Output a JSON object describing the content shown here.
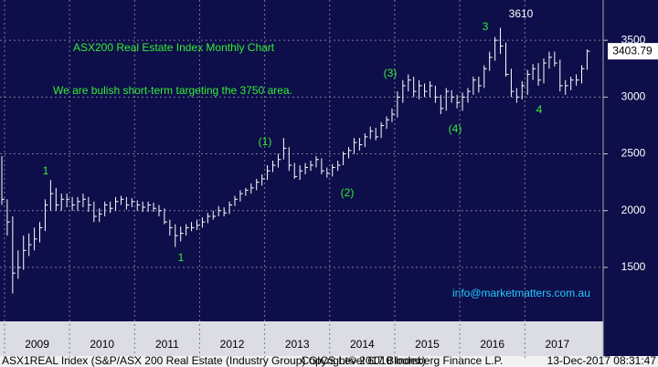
{
  "chart_data": {
    "type": "ohlc",
    "title": "ASX200 Real Estate Index Monthly Chart",
    "subtitle": "We are bulish short-term targeting the 3750 area.",
    "wave_labels": [
      "1",
      "1",
      "(1)",
      "(2)",
      "(3)",
      "(4)",
      "3",
      "4"
    ],
    "watermark": "info@marketmatters.com.au",
    "footer": [
      "ASX1REAL Index (S&P/ASX 200 Real Estate (Industry Group) GICS Level 6010 Index)",
      "Copyright© 2017 Bloomberg Finance L.P.",
      "13-Dec-2017 08:31:47"
    ],
    "categories": [
      "2009",
      "2010",
      "2011",
      "2012",
      "2013",
      "2014",
      "2015",
      "2016",
      "2017"
    ],
    "ylim": [
      1025,
      3855
    ],
    "yticks": [
      1500,
      2000,
      2500,
      3000,
      3500
    ],
    "grid": true,
    "color": "#ffffff",
    "high": [
      2480,
      2100,
      1950,
      1650,
      1780,
      1800,
      1850,
      1900,
      2100,
      2270,
      2200,
      2150,
      2150,
      2120,
      2120,
      2150,
      2120,
      2080,
      2020,
      2080,
      2080,
      2120,
      2130,
      2120,
      2110,
      2090,
      2080,
      2080,
      2070,
      2050,
      2020,
      1920,
      1880,
      1860,
      1880,
      1900,
      1920,
      1940,
      1980,
      2000,
      2040,
      2030,
      2080,
      2130,
      2180,
      2200,
      2240,
      2280,
      2320,
      2400,
      2440,
      2500,
      2640,
      2560,
      2420,
      2400,
      2420,
      2440,
      2480,
      2460,
      2380,
      2410,
      2440,
      2520,
      2560,
      2640,
      2640,
      2680,
      2740,
      2730,
      2780,
      2830,
      2900,
      3050,
      3150,
      3200,
      3180,
      3150,
      3120,
      3140,
      3100,
      3020,
      3080,
      3060,
      3020,
      3040,
      3080,
      3180,
      3180,
      3280,
      3400,
      3530,
      3610,
      3480,
      3250,
      3080,
      3140,
      3240,
      3290,
      3300,
      3340,
      3400,
      3400,
      3330,
      3150,
      3180,
      3200,
      3280,
      3420
    ],
    "low": [
      2050,
      1780,
      1270,
      1400,
      1480,
      1600,
      1650,
      1720,
      1820,
      2000,
      2000,
      2000,
      2030,
      2000,
      2000,
      2030,
      1990,
      1900,
      1900,
      1950,
      1980,
      2000,
      2050,
      2010,
      2030,
      2000,
      1990,
      1990,
      1990,
      1950,
      1880,
      1780,
      1680,
      1730,
      1780,
      1820,
      1830,
      1850,
      1890,
      1920,
      1950,
      1950,
      1970,
      2040,
      2080,
      2130,
      2150,
      2180,
      2220,
      2270,
      2340,
      2380,
      2450,
      2350,
      2280,
      2270,
      2320,
      2350,
      2380,
      2320,
      2290,
      2300,
      2350,
      2400,
      2460,
      2500,
      2530,
      2560,
      2630,
      2620,
      2640,
      2720,
      2780,
      2820,
      2950,
      3050,
      3000,
      2980,
      3000,
      3000,
      2950,
      2850,
      2880,
      2950,
      2900,
      2880,
      2950,
      3020,
      3040,
      3080,
      3230,
      3320,
      3380,
      3180,
      3000,
      2950,
      2980,
      3020,
      3150,
      3100,
      3120,
      3250,
      3270,
      3050,
      3020,
      3060,
      3100,
      3120,
      3240
    ],
    "close": [
      2100,
      1900,
      1450,
      1500,
      1650,
      1700,
      1750,
      1850,
      2050,
      2150,
      2050,
      2100,
      2100,
      2050,
      2080,
      2100,
      2050,
      1950,
      1970,
      2050,
      2020,
      2080,
      2100,
      2050,
      2080,
      2050,
      2030,
      2050,
      2020,
      2000,
      1900,
      1850,
      1780,
      1800,
      1850,
      1850,
      1870,
      1900,
      1950,
      1950,
      2000,
      1980,
      2050,
      2100,
      2150,
      2180,
      2200,
      2250,
      2280,
      2350,
      2400,
      2450,
      2550,
      2400,
      2300,
      2350,
      2380,
      2400,
      2450,
      2350,
      2330,
      2380,
      2400,
      2500,
      2530,
      2600,
      2580,
      2650,
      2700,
      2650,
      2750,
      2800,
      2850,
      3000,
      3100,
      3150,
      3050,
      3100,
      3050,
      3100,
      3000,
      2900,
      3050,
      3000,
      2950,
      3000,
      3050,
      3150,
      3100,
      3250,
      3350,
      3500,
      3450,
      3200,
      3050,
      3000,
      3100,
      3200,
      3250,
      3150,
      3300,
      3350,
      3300,
      3100,
      3100,
      3150,
      3150,
      3250,
      3403.79
    ]
  }
}
